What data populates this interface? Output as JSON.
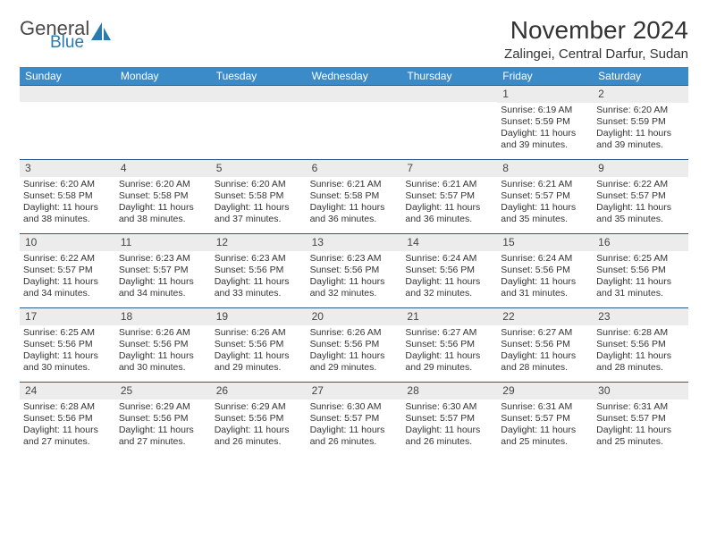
{
  "logo": {
    "general": "General",
    "blue": "Blue"
  },
  "title": "November 2024",
  "location": "Zalingei, Central Darfur, Sudan",
  "colors": {
    "header_bg": "#3b8bc9",
    "header_text": "#ffffff",
    "daynum_bg": "#ececec",
    "border": "#2a5a8a",
    "text": "#333333"
  },
  "weekdays": [
    "Sunday",
    "Monday",
    "Tuesday",
    "Wednesday",
    "Thursday",
    "Friday",
    "Saturday"
  ],
  "weeks": [
    [
      {
        "day": "",
        "sunrise": "",
        "sunset": "",
        "daylight1": "",
        "daylight2": ""
      },
      {
        "day": "",
        "sunrise": "",
        "sunset": "",
        "daylight1": "",
        "daylight2": ""
      },
      {
        "day": "",
        "sunrise": "",
        "sunset": "",
        "daylight1": "",
        "daylight2": ""
      },
      {
        "day": "",
        "sunrise": "",
        "sunset": "",
        "daylight1": "",
        "daylight2": ""
      },
      {
        "day": "",
        "sunrise": "",
        "sunset": "",
        "daylight1": "",
        "daylight2": ""
      },
      {
        "day": "1",
        "sunrise": "Sunrise: 6:19 AM",
        "sunset": "Sunset: 5:59 PM",
        "daylight1": "Daylight: 11 hours",
        "daylight2": "and 39 minutes."
      },
      {
        "day": "2",
        "sunrise": "Sunrise: 6:20 AM",
        "sunset": "Sunset: 5:59 PM",
        "daylight1": "Daylight: 11 hours",
        "daylight2": "and 39 minutes."
      }
    ],
    [
      {
        "day": "3",
        "sunrise": "Sunrise: 6:20 AM",
        "sunset": "Sunset: 5:58 PM",
        "daylight1": "Daylight: 11 hours",
        "daylight2": "and 38 minutes."
      },
      {
        "day": "4",
        "sunrise": "Sunrise: 6:20 AM",
        "sunset": "Sunset: 5:58 PM",
        "daylight1": "Daylight: 11 hours",
        "daylight2": "and 38 minutes."
      },
      {
        "day": "5",
        "sunrise": "Sunrise: 6:20 AM",
        "sunset": "Sunset: 5:58 PM",
        "daylight1": "Daylight: 11 hours",
        "daylight2": "and 37 minutes."
      },
      {
        "day": "6",
        "sunrise": "Sunrise: 6:21 AM",
        "sunset": "Sunset: 5:58 PM",
        "daylight1": "Daylight: 11 hours",
        "daylight2": "and 36 minutes."
      },
      {
        "day": "7",
        "sunrise": "Sunrise: 6:21 AM",
        "sunset": "Sunset: 5:57 PM",
        "daylight1": "Daylight: 11 hours",
        "daylight2": "and 36 minutes."
      },
      {
        "day": "8",
        "sunrise": "Sunrise: 6:21 AM",
        "sunset": "Sunset: 5:57 PM",
        "daylight1": "Daylight: 11 hours",
        "daylight2": "and 35 minutes."
      },
      {
        "day": "9",
        "sunrise": "Sunrise: 6:22 AM",
        "sunset": "Sunset: 5:57 PM",
        "daylight1": "Daylight: 11 hours",
        "daylight2": "and 35 minutes."
      }
    ],
    [
      {
        "day": "10",
        "sunrise": "Sunrise: 6:22 AM",
        "sunset": "Sunset: 5:57 PM",
        "daylight1": "Daylight: 11 hours",
        "daylight2": "and 34 minutes."
      },
      {
        "day": "11",
        "sunrise": "Sunrise: 6:23 AM",
        "sunset": "Sunset: 5:57 PM",
        "daylight1": "Daylight: 11 hours",
        "daylight2": "and 34 minutes."
      },
      {
        "day": "12",
        "sunrise": "Sunrise: 6:23 AM",
        "sunset": "Sunset: 5:56 PM",
        "daylight1": "Daylight: 11 hours",
        "daylight2": "and 33 minutes."
      },
      {
        "day": "13",
        "sunrise": "Sunrise: 6:23 AM",
        "sunset": "Sunset: 5:56 PM",
        "daylight1": "Daylight: 11 hours",
        "daylight2": "and 32 minutes."
      },
      {
        "day": "14",
        "sunrise": "Sunrise: 6:24 AM",
        "sunset": "Sunset: 5:56 PM",
        "daylight1": "Daylight: 11 hours",
        "daylight2": "and 32 minutes."
      },
      {
        "day": "15",
        "sunrise": "Sunrise: 6:24 AM",
        "sunset": "Sunset: 5:56 PM",
        "daylight1": "Daylight: 11 hours",
        "daylight2": "and 31 minutes."
      },
      {
        "day": "16",
        "sunrise": "Sunrise: 6:25 AM",
        "sunset": "Sunset: 5:56 PM",
        "daylight1": "Daylight: 11 hours",
        "daylight2": "and 31 minutes."
      }
    ],
    [
      {
        "day": "17",
        "sunrise": "Sunrise: 6:25 AM",
        "sunset": "Sunset: 5:56 PM",
        "daylight1": "Daylight: 11 hours",
        "daylight2": "and 30 minutes."
      },
      {
        "day": "18",
        "sunrise": "Sunrise: 6:26 AM",
        "sunset": "Sunset: 5:56 PM",
        "daylight1": "Daylight: 11 hours",
        "daylight2": "and 30 minutes."
      },
      {
        "day": "19",
        "sunrise": "Sunrise: 6:26 AM",
        "sunset": "Sunset: 5:56 PM",
        "daylight1": "Daylight: 11 hours",
        "daylight2": "and 29 minutes."
      },
      {
        "day": "20",
        "sunrise": "Sunrise: 6:26 AM",
        "sunset": "Sunset: 5:56 PM",
        "daylight1": "Daylight: 11 hours",
        "daylight2": "and 29 minutes."
      },
      {
        "day": "21",
        "sunrise": "Sunrise: 6:27 AM",
        "sunset": "Sunset: 5:56 PM",
        "daylight1": "Daylight: 11 hours",
        "daylight2": "and 29 minutes."
      },
      {
        "day": "22",
        "sunrise": "Sunrise: 6:27 AM",
        "sunset": "Sunset: 5:56 PM",
        "daylight1": "Daylight: 11 hours",
        "daylight2": "and 28 minutes."
      },
      {
        "day": "23",
        "sunrise": "Sunrise: 6:28 AM",
        "sunset": "Sunset: 5:56 PM",
        "daylight1": "Daylight: 11 hours",
        "daylight2": "and 28 minutes."
      }
    ],
    [
      {
        "day": "24",
        "sunrise": "Sunrise: 6:28 AM",
        "sunset": "Sunset: 5:56 PM",
        "daylight1": "Daylight: 11 hours",
        "daylight2": "and 27 minutes."
      },
      {
        "day": "25",
        "sunrise": "Sunrise: 6:29 AM",
        "sunset": "Sunset: 5:56 PM",
        "daylight1": "Daylight: 11 hours",
        "daylight2": "and 27 minutes."
      },
      {
        "day": "26",
        "sunrise": "Sunrise: 6:29 AM",
        "sunset": "Sunset: 5:56 PM",
        "daylight1": "Daylight: 11 hours",
        "daylight2": "and 26 minutes."
      },
      {
        "day": "27",
        "sunrise": "Sunrise: 6:30 AM",
        "sunset": "Sunset: 5:57 PM",
        "daylight1": "Daylight: 11 hours",
        "daylight2": "and 26 minutes."
      },
      {
        "day": "28",
        "sunrise": "Sunrise: 6:30 AM",
        "sunset": "Sunset: 5:57 PM",
        "daylight1": "Daylight: 11 hours",
        "daylight2": "and 26 minutes."
      },
      {
        "day": "29",
        "sunrise": "Sunrise: 6:31 AM",
        "sunset": "Sunset: 5:57 PM",
        "daylight1": "Daylight: 11 hours",
        "daylight2": "and 25 minutes."
      },
      {
        "day": "30",
        "sunrise": "Sunrise: 6:31 AM",
        "sunset": "Sunset: 5:57 PM",
        "daylight1": "Daylight: 11 hours",
        "daylight2": "and 25 minutes."
      }
    ]
  ]
}
